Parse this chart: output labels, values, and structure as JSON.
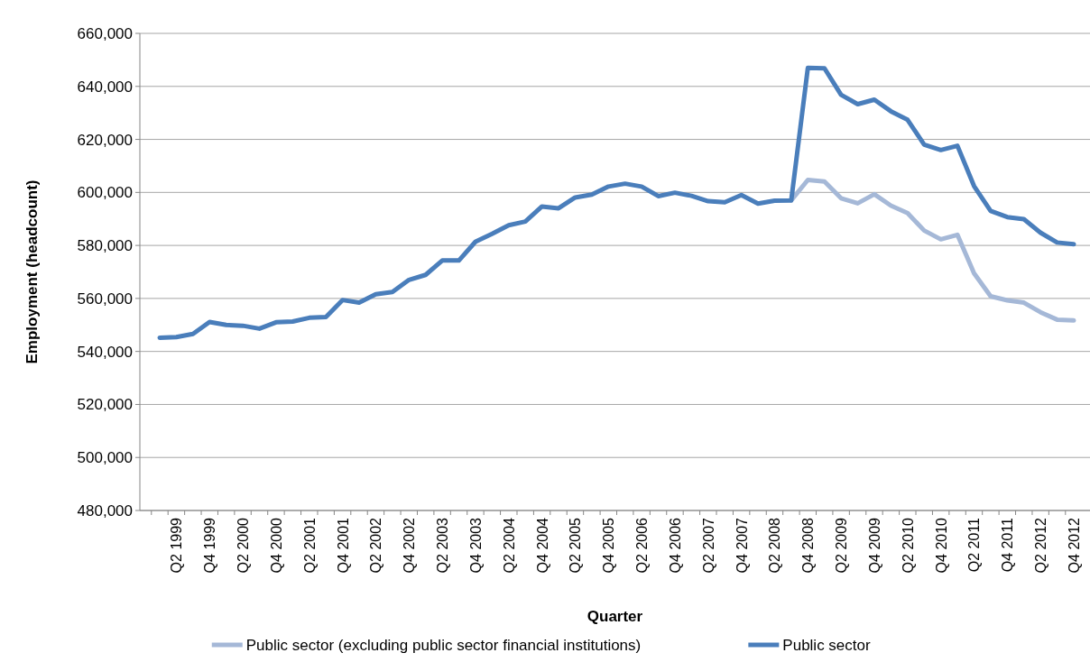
{
  "chart_data": {
    "type": "line",
    "xlabel": "Quarter",
    "ylabel": "Employment (headcount)",
    "categories": [
      null,
      "Q2 1999",
      null,
      "Q4 1999",
      null,
      "Q2 2000",
      null,
      "Q4 2000",
      null,
      "Q2 2001",
      null,
      "Q4 2001",
      null,
      "Q2 2002",
      null,
      "Q4 2002",
      null,
      "Q2 2003",
      null,
      "Q4 2003",
      null,
      "Q2 2004",
      null,
      "Q4 2004",
      null,
      "Q2 2005",
      null,
      "Q4 2005",
      null,
      "Q2 2006",
      null,
      "Q4 2006",
      null,
      "Q2 2007",
      null,
      "Q4 2007",
      null,
      "Q2 2008",
      null,
      "Q4 2008",
      null,
      "Q2 2009",
      null,
      "Q4 2009",
      null,
      "Q2 2010",
      null,
      "Q4 2010",
      null,
      "Q2 2011",
      null,
      "Q4 2011",
      null,
      "Q2 2012",
      null,
      "Q4 2012"
    ],
    "series": [
      {
        "name": "Public sector (excluding public sector financial institutions)",
        "color": "#a5b8d7",
        "values": [
          null,
          null,
          null,
          null,
          null,
          null,
          null,
          null,
          null,
          null,
          null,
          null,
          null,
          null,
          null,
          null,
          null,
          null,
          null,
          null,
          null,
          null,
          null,
          null,
          null,
          null,
          null,
          null,
          null,
          null,
          null,
          null,
          null,
          null,
          null,
          null,
          null,
          null,
          597000,
          604700,
          604100,
          597800,
          595900,
          599300,
          595000,
          592200,
          585600,
          582300,
          584000,
          569500,
          560800,
          559300,
          558400,
          554800,
          552000,
          551700
        ]
      },
      {
        "name": "Public sector",
        "color": "#4a7ebb",
        "values": [
          545200,
          545400,
          546600,
          551100,
          550000,
          549700,
          548600,
          551000,
          551300,
          552700,
          553000,
          559400,
          558400,
          561600,
          562400,
          567000,
          568900,
          574300,
          574300,
          581400,
          584400,
          587600,
          589000,
          594700,
          594000,
          598100,
          599200,
          602200,
          603300,
          602200,
          598600,
          599900,
          598700,
          596700,
          596300,
          599000,
          595800,
          596900,
          597000,
          647000,
          646800,
          636800,
          633300,
          635000,
          630600,
          627400,
          618000,
          616000,
          617600,
          602400,
          593000,
          590700,
          589900,
          584800,
          581100,
          580500
        ]
      }
    ],
    "ylim": [
      480000,
      660000
    ],
    "yticks": [
      {
        "value": 480000,
        "label": "480,000"
      },
      {
        "value": 500000,
        "label": "500,000"
      },
      {
        "value": 520000,
        "label": "520,000"
      },
      {
        "value": 540000,
        "label": "540,000"
      },
      {
        "value": 560000,
        "label": "560,000"
      },
      {
        "value": 580000,
        "label": "580,000"
      },
      {
        "value": 600000,
        "label": "600,000"
      },
      {
        "value": 620000,
        "label": "620,000"
      },
      {
        "value": 640000,
        "label": "640,000"
      },
      {
        "value": 660000,
        "label": "660,000"
      }
    ],
    "grid": "y",
    "legend": "bottom",
    "marker": "none",
    "line_style": "solid"
  }
}
